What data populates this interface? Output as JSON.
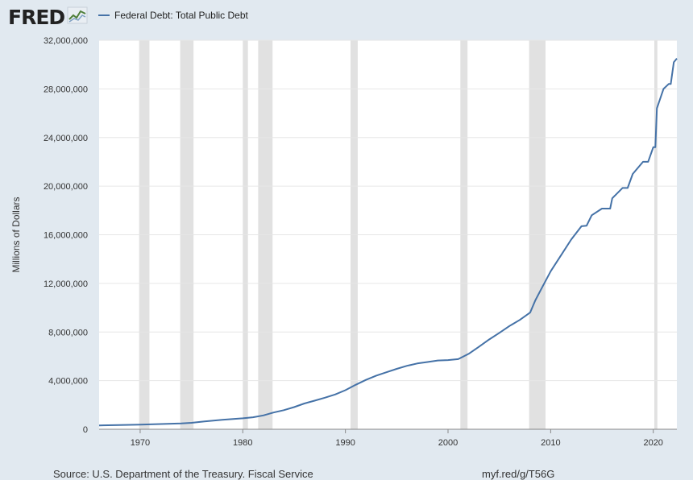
{
  "logo": {
    "text": "FRED",
    "icon": "line-chart-icon"
  },
  "legend": {
    "label": "Federal Debt: Total Public Debt",
    "color": "#4572a7"
  },
  "footer": {
    "source": "Source: U.S. Department of the Treasury. Fiscal Service",
    "url": "myf.red/g/T56G"
  },
  "colors": {
    "background": "#e1e9f0",
    "plot": "#ffffff",
    "line": "#4572a7",
    "recession": "#e1e1e1",
    "grid": "#e6e6e6"
  },
  "chart_data": {
    "type": "line",
    "title": "",
    "xlabel": "",
    "ylabel": "Millions of Dollars",
    "xlim": [
      1966,
      2022.3
    ],
    "ylim": [
      0,
      32000000
    ],
    "x_ticks": [
      {
        "value": 1970,
        "label": "1970"
      },
      {
        "value": 1980,
        "label": "1980"
      },
      {
        "value": 1990,
        "label": "1990"
      },
      {
        "value": 2000,
        "label": "2000"
      },
      {
        "value": 2010,
        "label": "2010"
      },
      {
        "value": 2020,
        "label": "2020"
      }
    ],
    "y_ticks": [
      {
        "value": 0,
        "label": "0"
      },
      {
        "value": 4000000,
        "label": "4,000,000"
      },
      {
        "value": 8000000,
        "label": "8,000,000"
      },
      {
        "value": 12000000,
        "label": "12,000,000"
      },
      {
        "value": 16000000,
        "label": "16,000,000"
      },
      {
        "value": 20000000,
        "label": "20,000,000"
      },
      {
        "value": 24000000,
        "label": "24,000,000"
      },
      {
        "value": 28000000,
        "label": "28,000,000"
      },
      {
        "value": 32000000,
        "label": "32,000,000"
      }
    ],
    "grid": true,
    "legend_position": "top-left",
    "recessions": [
      [
        1969.9,
        1970.9
      ],
      [
        1973.9,
        1975.2
      ],
      [
        1980.0,
        1980.5
      ],
      [
        1981.5,
        1982.9
      ],
      [
        1990.5,
        1991.2
      ],
      [
        2001.2,
        2001.9
      ],
      [
        2007.9,
        2009.5
      ],
      [
        2020.1,
        2020.4
      ]
    ],
    "series": [
      {
        "name": "Federal Debt: Total Public Debt",
        "color": "#4572a7",
        "points": [
          [
            1966,
            320000
          ],
          [
            1968,
            350000
          ],
          [
            1970,
            380000
          ],
          [
            1972,
            430000
          ],
          [
            1974,
            480000
          ],
          [
            1975,
            530000
          ],
          [
            1976,
            620000
          ],
          [
            1978,
            780000
          ],
          [
            1980,
            900000
          ],
          [
            1981,
            990000
          ],
          [
            1982,
            1140000
          ],
          [
            1983,
            1380000
          ],
          [
            1984,
            1570000
          ],
          [
            1985,
            1820000
          ],
          [
            1986,
            2120000
          ],
          [
            1987,
            2350000
          ],
          [
            1988,
            2600000
          ],
          [
            1989,
            2860000
          ],
          [
            1990,
            3210000
          ],
          [
            1991,
            3660000
          ],
          [
            1992,
            4060000
          ],
          [
            1993,
            4410000
          ],
          [
            1994,
            4690000
          ],
          [
            1995,
            4970000
          ],
          [
            1996,
            5220000
          ],
          [
            1997,
            5410000
          ],
          [
            1998,
            5530000
          ],
          [
            1999,
            5660000
          ],
          [
            2000,
            5690000
          ],
          [
            2001,
            5770000
          ],
          [
            2002,
            6200000
          ],
          [
            2003,
            6780000
          ],
          [
            2004,
            7380000
          ],
          [
            2005,
            7930000
          ],
          [
            2006,
            8500000
          ],
          [
            2007,
            9000000
          ],
          [
            2008,
            9600000
          ],
          [
            2008.5,
            10600000
          ],
          [
            2009,
            11400000
          ],
          [
            2010,
            13000000
          ],
          [
            2011,
            14300000
          ],
          [
            2012,
            15600000
          ],
          [
            2013,
            16700000
          ],
          [
            2013.5,
            16740000
          ],
          [
            2014,
            17600000
          ],
          [
            2015,
            18150000
          ],
          [
            2015.8,
            18150000
          ],
          [
            2016,
            19000000
          ],
          [
            2017,
            19850000
          ],
          [
            2017.5,
            19850000
          ],
          [
            2018,
            21000000
          ],
          [
            2019,
            22000000
          ],
          [
            2019.5,
            22000000
          ],
          [
            2020,
            23200000
          ],
          [
            2020.2,
            23200000
          ],
          [
            2020.35,
            26400000
          ],
          [
            2021,
            28000000
          ],
          [
            2021.5,
            28400000
          ],
          [
            2021.7,
            28400000
          ],
          [
            2022,
            30200000
          ],
          [
            2022.3,
            30500000
          ]
        ]
      }
    ]
  }
}
